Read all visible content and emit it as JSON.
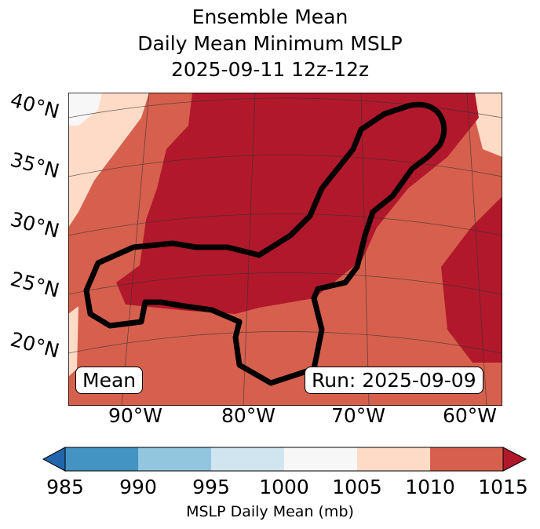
{
  "title": {
    "line1": "Ensemble Mean",
    "line2": "Daily Mean Minimum MSLP",
    "line3": "2025-09-11 12z-12z"
  },
  "map": {
    "lat_labels": [
      "40°N",
      "35°N",
      "30°N",
      "25°N",
      "20°N"
    ],
    "lon_labels": [
      "90°W",
      "80°W",
      "70°W",
      "60°W"
    ],
    "mean_label": "Mean",
    "run_label": "Run: 2025-09-09"
  },
  "colorbar": {
    "ticks": [
      "985",
      "990",
      "995",
      "1000",
      "1005",
      "1010",
      "1015"
    ],
    "colors": [
      "#2166ac",
      "#4393c3",
      "#92c5de",
      "#d1e5f0",
      "#f7f7f7",
      "#fddbc7",
      "#d6604d",
      "#b2182b"
    ],
    "label": "MSLP Daily Mean (mb)"
  }
}
